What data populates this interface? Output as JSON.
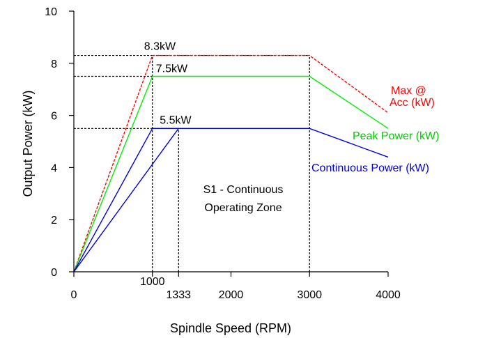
{
  "chart_data": {
    "type": "line",
    "xlabel": "Spindle Speed (RPM)",
    "ylabel": "Output Power (kW)",
    "xlim": [
      0,
      4000
    ],
    "ylim": [
      0,
      10
    ],
    "x_ticks": [
      {
        "value": 0,
        "label": "0"
      },
      {
        "value": 1000,
        "label": "1000"
      },
      {
        "value": 1333,
        "label": "1333"
      },
      {
        "value": 2000,
        "label": "2000"
      },
      {
        "value": 3000,
        "label": "3000"
      },
      {
        "value": 4000,
        "label": "4000"
      }
    ],
    "y_ticks": [
      {
        "value": 0,
        "label": "0"
      },
      {
        "value": 2,
        "label": "2"
      },
      {
        "value": 4,
        "label": "4"
      },
      {
        "value": 6,
        "label": "6"
      },
      {
        "value": 8,
        "label": "8"
      },
      {
        "value": 10,
        "label": "10"
      }
    ],
    "series": [
      {
        "name": "Max @ Acc (kW)",
        "color": "#ff0000",
        "dashed": true,
        "x": [
          0,
          1000,
          3000,
          4000
        ],
        "y": [
          0,
          8.3,
          8.3,
          6.1
        ]
      },
      {
        "name": "Peak Power (kW)",
        "color": "#00ee00",
        "dashed": false,
        "x": [
          0,
          1000,
          3000,
          4000
        ],
        "y": [
          0,
          7.5,
          7.5,
          5.5
        ]
      },
      {
        "name": "Continuous Power (kW)",
        "color": "#0000dd",
        "dashed": false,
        "x": [
          0,
          1000,
          3000,
          4000
        ],
        "y": [
          0,
          5.5,
          5.5,
          4.4
        ]
      },
      {
        "name": "",
        "color": "#0000dd",
        "dashed": false,
        "x": [
          0,
          1333
        ],
        "y": [
          0,
          5.5
        ]
      }
    ],
    "series_labels": [
      {
        "lines": [
          "Max @",
          "Acc (kW)"
        ],
        "color": "#ff0000"
      },
      {
        "lines": [
          "Peak Power (kW)"
        ],
        "color": "#00cc00"
      },
      {
        "lines": [
          "Continuous Power (kW)"
        ],
        "color": "#0000dd"
      }
    ],
    "reference_lines": [
      {
        "points": [
          [
            0,
            8.3
          ],
          [
            1000,
            8.3
          ]
        ],
        "color": "#000000"
      },
      {
        "points": [
          [
            0,
            7.5
          ],
          [
            1000,
            7.5
          ]
        ],
        "color": "#000000"
      },
      {
        "points": [
          [
            0,
            5.5
          ],
          [
            1333,
            5.5
          ]
        ],
        "color": "#000000"
      },
      {
        "points": [
          [
            1000,
            0
          ],
          [
            1000,
            8.3
          ]
        ],
        "color": "#000000"
      },
      {
        "points": [
          [
            1333,
            0
          ],
          [
            1333,
            5.5
          ]
        ],
        "color": "#000000"
      },
      {
        "points": [
          [
            3000,
            0
          ],
          [
            3000,
            8.3
          ]
        ],
        "color": "#000000"
      },
      {
        "points": [
          [
            1000,
            8.3
          ],
          [
            3000,
            8.3
          ]
        ],
        "color": "#000000"
      }
    ],
    "annotations": [
      {
        "text": "8.3kW",
        "x": 1000,
        "y": 8.3
      },
      {
        "text": "7.5kW",
        "x": 1000,
        "y": 7.5
      },
      {
        "text": "5.5kW",
        "x": 1333,
        "y": 5.5
      }
    ],
    "zone_label": [
      "S1 - Continuous",
      "Operating Zone"
    ],
    "grid": false
  }
}
